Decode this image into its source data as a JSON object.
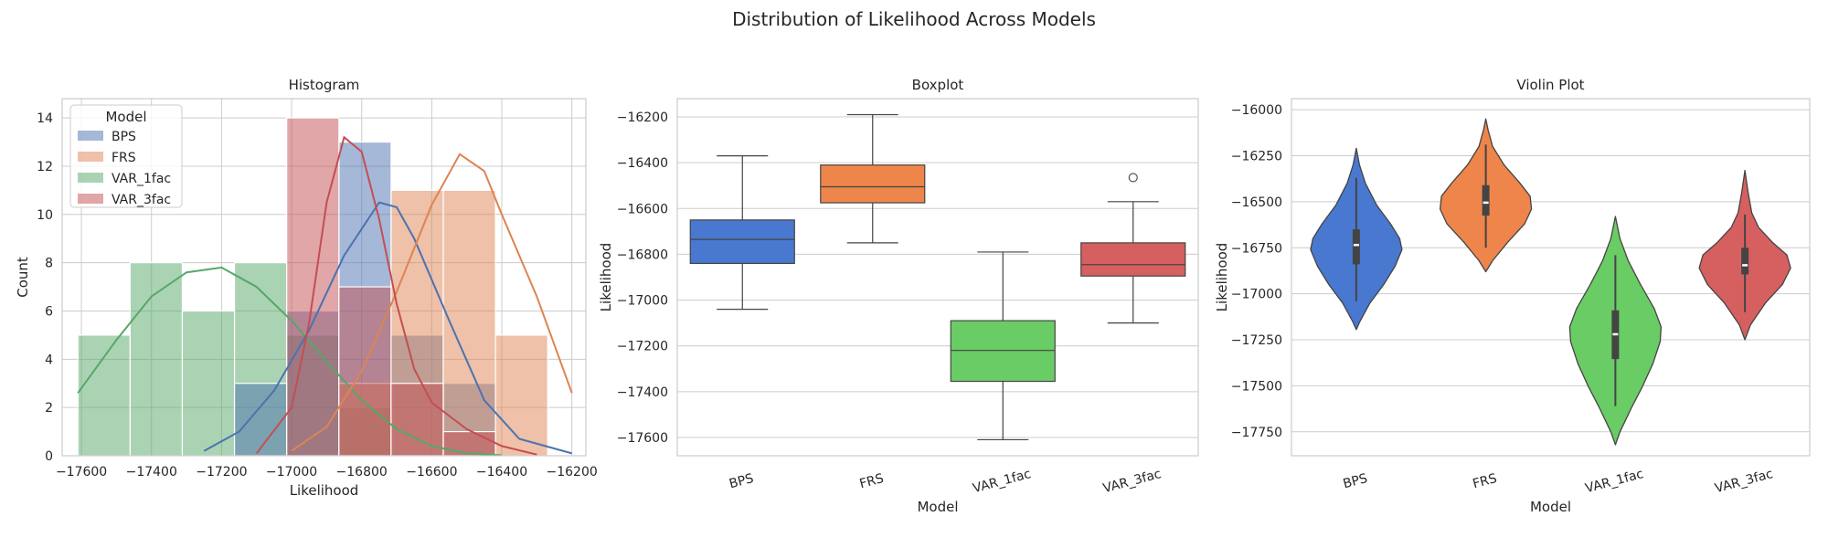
{
  "title": "Distribution of Likelihood Across Models",
  "colors": {
    "BPS": "#4c72b0",
    "FRS": "#dd8452",
    "VAR_1fac": "#55a868",
    "VAR_3fac": "#c44e52",
    "box_BPS": "#4878d0",
    "box_FRS": "#ee854a",
    "box_VAR_1fac": "#6acc64",
    "box_VAR_3fac": "#d65f5f",
    "grid": "#cccccc",
    "line": "#444444"
  },
  "chart_data": [
    {
      "type": "histogram",
      "title": "Histogram",
      "xlabel": "Likelihood",
      "ylabel": "Count",
      "xlim": [
        -17655,
        -16160
      ],
      "ylim": [
        0,
        14.8
      ],
      "xticks": [
        -17600,
        -17400,
        -17200,
        -17000,
        -16800,
        -16600,
        -16400,
        -16200
      ],
      "yticks": [
        0,
        2,
        4,
        6,
        8,
        10,
        12,
        14
      ],
      "legend": {
        "title": "Model",
        "placement": "top-left",
        "entries": [
          "BPS",
          "FRS",
          "VAR_1fac",
          "VAR_3fac"
        ]
      },
      "bin_edges": [
        -17610,
        -17461,
        -17312,
        -17163,
        -17014,
        -16865,
        -16716,
        -16567,
        -16418,
        -16269,
        -16190
      ],
      "series": [
        {
          "name": "VAR_1fac",
          "bins": [
            [
              -17610,
              -17461,
              5
            ],
            [
              -17461,
              -17312,
              8
            ],
            [
              -17312,
              -17163,
              6
            ],
            [
              -17163,
              -17014,
              8
            ],
            [
              -17014,
              -16865,
              5
            ],
            [
              -16865,
              -16716,
              2
            ],
            [
              -16716,
              -16567,
              0
            ]
          ]
        },
        {
          "name": "BPS",
          "bins": [
            [
              -17163,
              -17014,
              3
            ],
            [
              -17014,
              -16865,
              6
            ],
            [
              -16865,
              -16716,
              13
            ],
            [
              -16716,
              -16567,
              5
            ],
            [
              -16567,
              -16418,
              3
            ]
          ]
        },
        {
          "name": "FRS",
          "bins": [
            [
              -16865,
              -16716,
              3
            ],
            [
              -16716,
              -16567,
              11
            ],
            [
              -16567,
              -16418,
              11
            ],
            [
              -16418,
              -16269,
              5
            ]
          ]
        },
        {
          "name": "VAR_3fac",
          "bins": [
            [
              -17014,
              -16865,
              14
            ],
            [
              -16865,
              -16716,
              7
            ],
            [
              -16716,
              -16567,
              3
            ],
            [
              -16567,
              -16418,
              1
            ]
          ]
        }
      ],
      "kde": [
        {
          "name": "VAR_1fac",
          "points": [
            [
              -17610,
              2.6
            ],
            [
              -17500,
              4.8
            ],
            [
              -17400,
              6.6
            ],
            [
              -17300,
              7.6
            ],
            [
              -17200,
              7.8
            ],
            [
              -17100,
              7.0
            ],
            [
              -17000,
              5.6
            ],
            [
              -16900,
              3.9
            ],
            [
              -16800,
              2.3
            ],
            [
              -16700,
              1.1
            ],
            [
              -16600,
              0.4
            ],
            [
              -16500,
              0.1
            ],
            [
              -16400,
              0.02
            ]
          ]
        },
        {
          "name": "BPS",
          "points": [
            [
              -17250,
              0.2
            ],
            [
              -17150,
              1.0
            ],
            [
              -17050,
              2.7
            ],
            [
              -16950,
              5.2
            ],
            [
              -16850,
              8.3
            ],
            [
              -16750,
              10.5
            ],
            [
              -16700,
              10.3
            ],
            [
              -16650,
              9.0
            ],
            [
              -16550,
              5.6
            ],
            [
              -16450,
              2.3
            ],
            [
              -16350,
              0.7
            ],
            [
              -16200,
              0.1
            ]
          ]
        },
        {
          "name": "FRS",
          "points": [
            [
              -17000,
              0.2
            ],
            [
              -16900,
              1.2
            ],
            [
              -16800,
              3.5
            ],
            [
              -16700,
              6.8
            ],
            [
              -16600,
              10.4
            ],
            [
              -16520,
              12.5
            ],
            [
              -16450,
              11.8
            ],
            [
              -16400,
              10.0
            ],
            [
              -16300,
              6.6
            ],
            [
              -16200,
              2.6
            ]
          ]
        },
        {
          "name": "VAR_3fac",
          "points": [
            [
              -17100,
              0.1
            ],
            [
              -17000,
              2.0
            ],
            [
              -16950,
              5.5
            ],
            [
              -16900,
              10.5
            ],
            [
              -16850,
              13.2
            ],
            [
              -16800,
              12.6
            ],
            [
              -16750,
              9.8
            ],
            [
              -16700,
              6.3
            ],
            [
              -16650,
              3.6
            ],
            [
              -16600,
              2.2
            ],
            [
              -16500,
              1.1
            ],
            [
              -16400,
              0.4
            ],
            [
              -16300,
              0.05
            ]
          ]
        }
      ]
    },
    {
      "type": "box",
      "title": "Boxplot",
      "xlabel": "Model",
      "ylabel": "Likelihood",
      "ylim": [
        -17680,
        -16120
      ],
      "yticks": [
        -17600,
        -17400,
        -17200,
        -17000,
        -16800,
        -16600,
        -16400,
        -16200
      ],
      "categories": [
        "BPS",
        "FRS",
        "VAR_1fac",
        "VAR_3fac"
      ],
      "boxes": [
        {
          "name": "BPS",
          "whislo": -17040,
          "q1": -16840,
          "med": -16735,
          "q3": -16650,
          "whishi": -16370,
          "fliers": []
        },
        {
          "name": "FRS",
          "whislo": -16750,
          "q1": -16575,
          "med": -16505,
          "q3": -16410,
          "whishi": -16190,
          "fliers": []
        },
        {
          "name": "VAR_1fac",
          "whislo": -17610,
          "q1": -17355,
          "med": -17220,
          "q3": -17090,
          "whishi": -16790,
          "fliers": []
        },
        {
          "name": "VAR_3fac",
          "whislo": -17100,
          "q1": -16895,
          "med": -16845,
          "q3": -16750,
          "whishi": -16570,
          "fliers": [
            -16465
          ]
        }
      ]
    },
    {
      "type": "violin",
      "title": "Violin Plot",
      "xlabel": "Model",
      "ylabel": "Likelihood",
      "ylim": [
        -17880,
        -15940
      ],
      "yticks": [
        -17750,
        -17500,
        -17250,
        -17000,
        -16750,
        -16500,
        -16250,
        -16000
      ],
      "categories": [
        "BPS",
        "FRS",
        "VAR_1fac",
        "VAR_3fac"
      ],
      "violins": [
        {
          "name": "BPS",
          "q1": -16840,
          "med": -16735,
          "q3": -16650,
          "whislo": -17040,
          "whishi": -16370,
          "shape": [
            [
              -17195,
              0
            ],
            [
              -17150,
              0.08
            ],
            [
              -17050,
              0.3
            ],
            [
              -16950,
              0.6
            ],
            [
              -16850,
              0.85
            ],
            [
              -16760,
              1.0
            ],
            [
              -16700,
              0.95
            ],
            [
              -16620,
              0.75
            ],
            [
              -16520,
              0.45
            ],
            [
              -16400,
              0.2
            ],
            [
              -16300,
              0.07
            ],
            [
              -16210,
              0
            ]
          ]
        },
        {
          "name": "FRS",
          "q1": -16575,
          "med": -16505,
          "q3": -16410,
          "whislo": -16750,
          "whishi": -16190,
          "shape": [
            [
              -16880,
              0
            ],
            [
              -16820,
              0.15
            ],
            [
              -16720,
              0.48
            ],
            [
              -16620,
              0.85
            ],
            [
              -16540,
              1.0
            ],
            [
              -16470,
              0.97
            ],
            [
              -16400,
              0.75
            ],
            [
              -16300,
              0.4
            ],
            [
              -16200,
              0.15
            ],
            [
              -16110,
              0.05
            ],
            [
              -16050,
              0
            ]
          ]
        },
        {
          "name": "VAR_1fac",
          "q1": -17355,
          "med": -17220,
          "q3": -17090,
          "whislo": -17610,
          "whishi": -16790,
          "shape": [
            [
              -17820,
              0
            ],
            [
              -17750,
              0.1
            ],
            [
              -17620,
              0.35
            ],
            [
              -17500,
              0.6
            ],
            [
              -17380,
              0.82
            ],
            [
              -17260,
              0.98
            ],
            [
              -17180,
              1.0
            ],
            [
              -17080,
              0.85
            ],
            [
              -16950,
              0.55
            ],
            [
              -16820,
              0.28
            ],
            [
              -16700,
              0.1
            ],
            [
              -16580,
              0
            ]
          ]
        },
        {
          "name": "VAR_3fac",
          "q1": -16895,
          "med": -16845,
          "q3": -16750,
          "whislo": -17100,
          "whishi": -16570,
          "shape": [
            [
              -17250,
              0
            ],
            [
              -17170,
              0.12
            ],
            [
              -17050,
              0.45
            ],
            [
              -16950,
              0.82
            ],
            [
              -16860,
              1.0
            ],
            [
              -16790,
              0.92
            ],
            [
              -16720,
              0.6
            ],
            [
              -16640,
              0.3
            ],
            [
              -16560,
              0.15
            ],
            [
              -16450,
              0.07
            ],
            [
              -16330,
              0
            ]
          ]
        }
      ]
    }
  ]
}
